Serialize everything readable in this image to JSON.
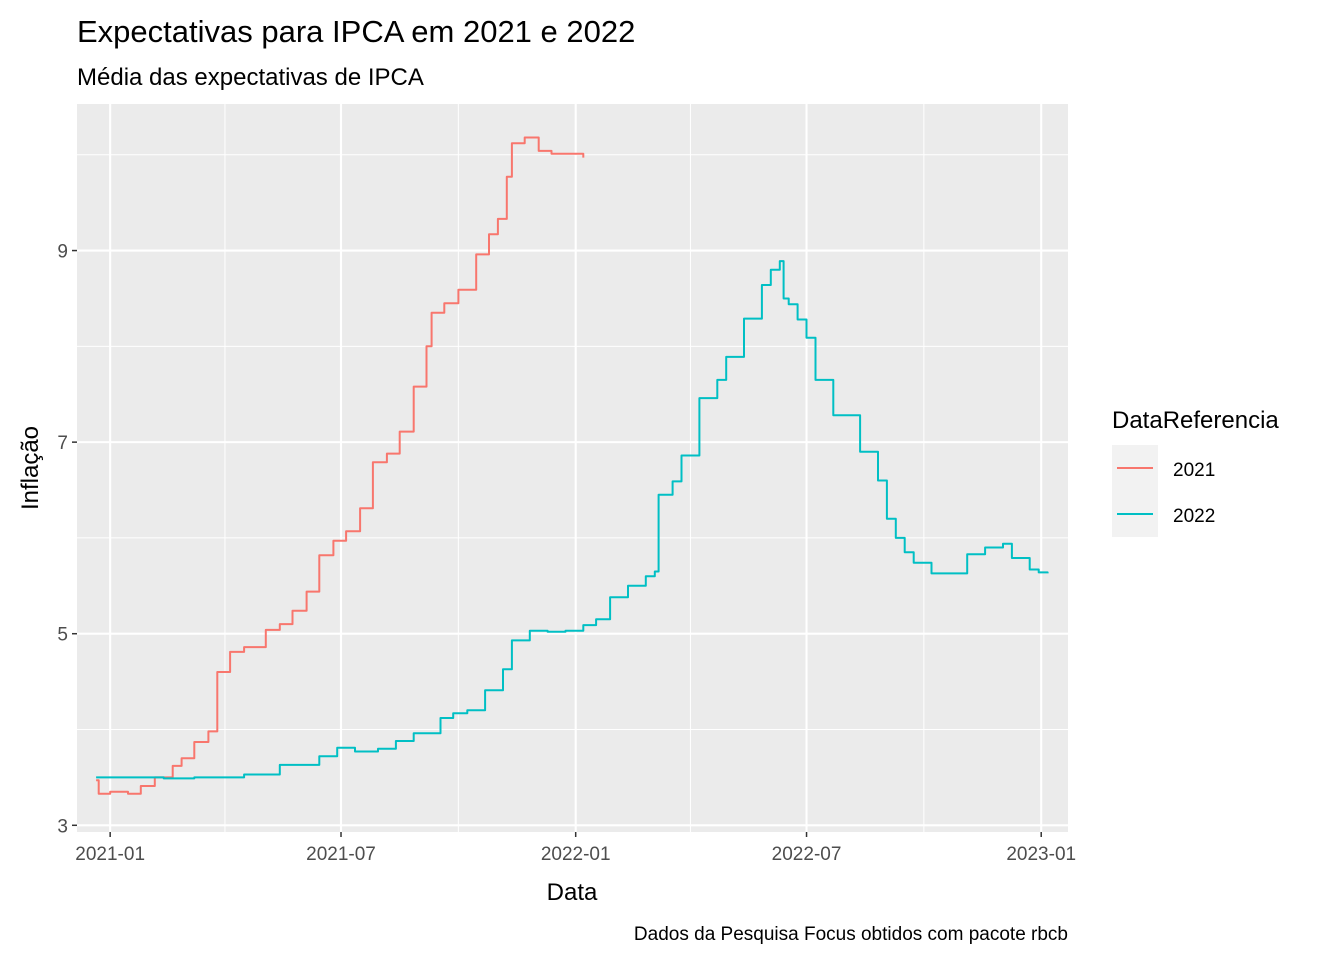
{
  "chart_data": {
    "type": "line",
    "title": "Expectativas para IPCA em 2021 e 2022",
    "subtitle": "Média das expectativas de IPCA",
    "xlabel": "Data",
    "ylabel": "Inflação",
    "caption": "Dados da Pesquisa Focus obtidos com pacote rbcb",
    "legend_title": "DataReferencia",
    "legend_position": "right",
    "grid": true,
    "x_ticks": [
      "2021-01",
      "2021-07",
      "2022-01",
      "2022-07",
      "2023-01"
    ],
    "y_ticks": [
      3,
      5,
      7,
      9
    ],
    "xlim": [
      "2020-12-06",
      "2023-01-22"
    ],
    "ylim": [
      2.93,
      10.53
    ],
    "series": [
      {
        "name": "2021",
        "color": "#F8766D",
        "points": [
          [
            "2020-12-21",
            3.47
          ],
          [
            "2020-12-23",
            3.33
          ],
          [
            "2021-01-01",
            3.35
          ],
          [
            "2021-01-15",
            3.33
          ],
          [
            "2021-01-25",
            3.41
          ],
          [
            "2021-02-05",
            3.5
          ],
          [
            "2021-02-19",
            3.62
          ],
          [
            "2021-02-26",
            3.7
          ],
          [
            "2021-03-08",
            3.87
          ],
          [
            "2021-03-19",
            3.98
          ],
          [
            "2021-03-26",
            4.6
          ],
          [
            "2021-04-05",
            4.81
          ],
          [
            "2021-04-16",
            4.86
          ],
          [
            "2021-05-03",
            5.04
          ],
          [
            "2021-05-14",
            5.1
          ],
          [
            "2021-05-24",
            5.24
          ],
          [
            "2021-06-04",
            5.44
          ],
          [
            "2021-06-14",
            5.82
          ],
          [
            "2021-06-25",
            5.97
          ],
          [
            "2021-07-05",
            6.07
          ],
          [
            "2021-07-16",
            6.31
          ],
          [
            "2021-07-26",
            6.79
          ],
          [
            "2021-08-06",
            6.88
          ],
          [
            "2021-08-16",
            7.11
          ],
          [
            "2021-08-27",
            7.58
          ],
          [
            "2021-09-06",
            8.0
          ],
          [
            "2021-09-10",
            8.35
          ],
          [
            "2021-09-20",
            8.45
          ],
          [
            "2021-10-01",
            8.59
          ],
          [
            "2021-10-15",
            8.96
          ],
          [
            "2021-10-25",
            9.17
          ],
          [
            "2021-11-01",
            9.33
          ],
          [
            "2021-11-08",
            9.77
          ],
          [
            "2021-11-12",
            10.12
          ],
          [
            "2021-11-22",
            10.18
          ],
          [
            "2021-12-03",
            10.04
          ],
          [
            "2021-12-13",
            10.01
          ],
          [
            "2022-01-07",
            9.97
          ]
        ]
      },
      {
        "name": "2022",
        "color": "#00BFC4",
        "points": [
          [
            "2020-12-21",
            3.5
          ],
          [
            "2021-01-25",
            3.5
          ],
          [
            "2021-02-12",
            3.49
          ],
          [
            "2021-03-08",
            3.5
          ],
          [
            "2021-04-16",
            3.53
          ],
          [
            "2021-05-14",
            3.63
          ],
          [
            "2021-06-14",
            3.72
          ],
          [
            "2021-06-28",
            3.81
          ],
          [
            "2021-07-12",
            3.77
          ],
          [
            "2021-07-30",
            3.8
          ],
          [
            "2021-08-13",
            3.88
          ],
          [
            "2021-08-27",
            3.96
          ],
          [
            "2021-09-17",
            4.12
          ],
          [
            "2021-09-27",
            4.17
          ],
          [
            "2021-10-08",
            4.2
          ],
          [
            "2021-10-22",
            4.41
          ],
          [
            "2021-11-05",
            4.63
          ],
          [
            "2021-11-12",
            4.93
          ],
          [
            "2021-11-26",
            5.03
          ],
          [
            "2021-12-10",
            5.02
          ],
          [
            "2021-12-24",
            5.03
          ],
          [
            "2022-01-07",
            5.09
          ],
          [
            "2022-01-17",
            5.15
          ],
          [
            "2022-01-28",
            5.38
          ],
          [
            "2022-02-11",
            5.5
          ],
          [
            "2022-02-25",
            5.6
          ],
          [
            "2022-03-04",
            5.65
          ],
          [
            "2022-03-07",
            6.45
          ],
          [
            "2022-03-18",
            6.59
          ],
          [
            "2022-03-25",
            6.86
          ],
          [
            "2022-04-08",
            7.46
          ],
          [
            "2022-04-22",
            7.65
          ],
          [
            "2022-04-29",
            7.89
          ],
          [
            "2022-05-13",
            8.29
          ],
          [
            "2022-05-27",
            8.64
          ],
          [
            "2022-06-03",
            8.8
          ],
          [
            "2022-06-10",
            8.89
          ],
          [
            "2022-06-13",
            8.5
          ],
          [
            "2022-06-17",
            8.44
          ],
          [
            "2022-06-24",
            8.28
          ],
          [
            "2022-07-01",
            8.09
          ],
          [
            "2022-07-08",
            7.65
          ],
          [
            "2022-07-22",
            7.28
          ],
          [
            "2022-08-12",
            6.9
          ],
          [
            "2022-08-26",
            6.6
          ],
          [
            "2022-09-02",
            6.2
          ],
          [
            "2022-09-09",
            6.0
          ],
          [
            "2022-09-16",
            5.85
          ],
          [
            "2022-09-23",
            5.74
          ],
          [
            "2022-10-07",
            5.63
          ],
          [
            "2022-10-28",
            5.63
          ],
          [
            "2022-11-04",
            5.83
          ],
          [
            "2022-11-18",
            5.9
          ],
          [
            "2022-12-02",
            5.94
          ],
          [
            "2022-12-09",
            5.79
          ],
          [
            "2022-12-23",
            5.67
          ],
          [
            "2022-12-30",
            5.64
          ],
          [
            "2023-01-06",
            5.63
          ]
        ]
      }
    ]
  }
}
